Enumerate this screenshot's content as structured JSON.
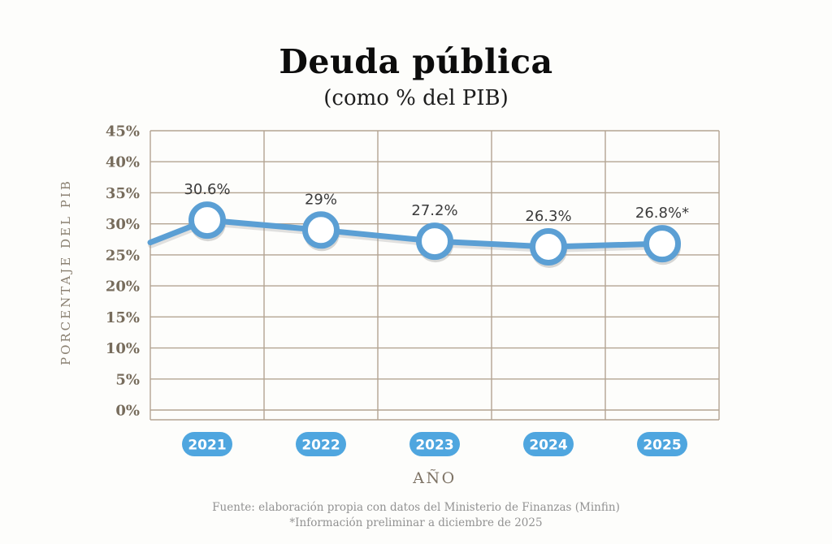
{
  "title": "Deuda pública",
  "subtitle": "(como % del PIB)",
  "chart_data": {
    "type": "line",
    "title": "Deuda pública",
    "subtitle": "(como % del PIB)",
    "categories": [
      "2021",
      "2022",
      "2023",
      "2024",
      "2025"
    ],
    "values": [
      30.6,
      29,
      27.2,
      26.3,
      26.8
    ],
    "point_labels": [
      "30.6%",
      "29%",
      "27.2%",
      "26.3%",
      "26.8%*"
    ],
    "left_edge_value": 27.0,
    "xlabel": "AÑO",
    "ylabel": "PORCENTAJE DEL PIB",
    "ylim": [
      0,
      45
    ],
    "ytick_step": 5,
    "ytick_labels": [
      "0%",
      "5%",
      "10%",
      "15%",
      "20%",
      "25%",
      "30%",
      "35%",
      "40%",
      "45%"
    ],
    "grid": true,
    "legend": "none",
    "colors": {
      "grid": "#b3a492",
      "tick_text": "#776c5c",
      "line": "#5b9fd4",
      "marker_fill": "#ffffff",
      "marker_stroke": "#5b9fd4",
      "marker_shadow": "#9a9a9a",
      "pill": "#4fa6df",
      "pill_text": "#ffffff",
      "point_label_text": "#3b3b3b"
    }
  },
  "footer": {
    "source": "Fuente: elaboración propia con datos del Ministerio de Finanzas (Minfin)",
    "note": "*Información preliminar a diciembre de 2025"
  }
}
